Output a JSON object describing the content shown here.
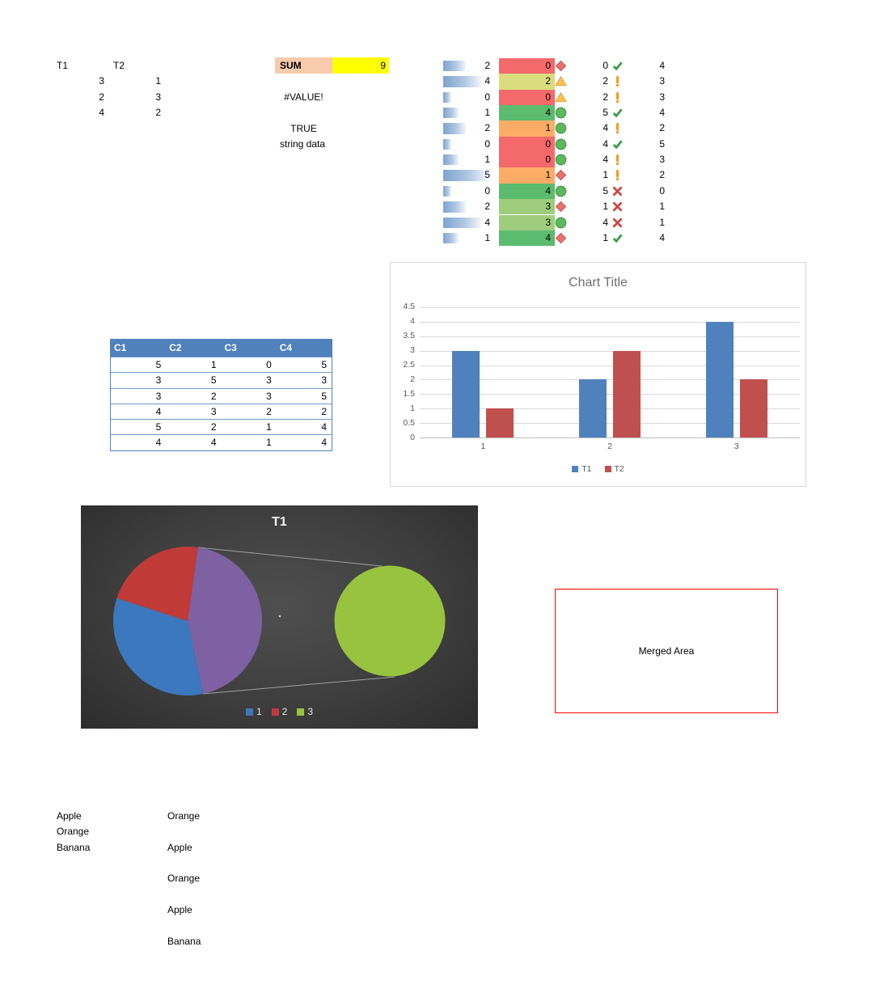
{
  "top_left_table": {
    "col_headers": [
      "T1",
      "T2"
    ],
    "rows": [
      [
        "3",
        "1"
      ],
      [
        "2",
        "3"
      ],
      [
        "4",
        "2"
      ]
    ]
  },
  "sum_panel": {
    "label": "SUM",
    "value": "9",
    "error_value": "#VALUE!",
    "bool_value": "TRUE",
    "string_value": "string data",
    "label_bg": "#F8CBAD",
    "value_bg": "#FFFF00"
  },
  "cond_format": {
    "scale_colors": {
      "red": "#F3696C",
      "khaki": "#D9DD7E",
      "orange": "#FBAD68",
      "lightgreen": "#9ECD7E",
      "green": "#5BBB6E"
    },
    "icon_colors": {
      "diamond_fill": "#E8716E",
      "diamond_stroke": "#C05450",
      "triangle_fill": "#FDC24E",
      "triangle_stroke": "#E09A3E",
      "circle_fill": "#5CB85C",
      "circle_stroke": "#3E8E41",
      "check": "#3C9E49",
      "excl": "#F09C1B",
      "x": "#CE4844"
    },
    "bar_max": 5,
    "rows": [
      {
        "bar": 2,
        "scale": 0,
        "scale_bg": "red",
        "shape": "diamond",
        "icon_value": 0,
        "icon": "check",
        "plain": 4
      },
      {
        "bar": 4,
        "scale": 2,
        "scale_bg": "khaki",
        "shape": "triangle",
        "icon_value": 2,
        "icon": "excl",
        "plain": 3
      },
      {
        "bar": 0,
        "scale": 0,
        "scale_bg": "red",
        "shape": "triangle",
        "icon_value": 2,
        "icon": "excl",
        "plain": 3
      },
      {
        "bar": 1,
        "scale": 4,
        "scale_bg": "green",
        "shape": "circle",
        "icon_value": 5,
        "icon": "check",
        "plain": 4
      },
      {
        "bar": 2,
        "scale": 1,
        "scale_bg": "orange",
        "shape": "circle",
        "icon_value": 4,
        "icon": "excl",
        "plain": 2
      },
      {
        "bar": 0,
        "scale": 0,
        "scale_bg": "red",
        "shape": "circle",
        "icon_value": 4,
        "icon": "check",
        "plain": 5
      },
      {
        "bar": 1,
        "scale": 0,
        "scale_bg": "red",
        "shape": "circle",
        "icon_value": 4,
        "icon": "excl",
        "plain": 3
      },
      {
        "bar": 5,
        "scale": 1,
        "scale_bg": "orange",
        "shape": "diamond",
        "icon_value": 1,
        "icon": "excl",
        "plain": 2
      },
      {
        "bar": 0,
        "scale": 4,
        "scale_bg": "green",
        "shape": "circle",
        "icon_value": 5,
        "icon": "x",
        "plain": 0
      },
      {
        "bar": 2,
        "scale": 3,
        "scale_bg": "lightgreen",
        "shape": "diamond",
        "icon_value": 1,
        "icon": "x",
        "plain": 1
      },
      {
        "bar": 4,
        "scale": 3,
        "scale_bg": "lightgreen",
        "shape": "circle",
        "icon_value": 4,
        "icon": "x",
        "plain": 1
      },
      {
        "bar": 1,
        "scale": 4,
        "scale_bg": "green",
        "shape": "diamond",
        "icon_value": 1,
        "icon": "check",
        "plain": 4
      }
    ]
  },
  "c_table": {
    "header_bg": "#4F81BD",
    "headers": [
      "C1",
      "C2",
      "C3",
      "C4"
    ],
    "rows": [
      [
        5,
        1,
        0,
        5
      ],
      [
        3,
        5,
        3,
        3
      ],
      [
        3,
        2,
        3,
        5
      ],
      [
        4,
        3,
        2,
        2
      ],
      [
        5,
        2,
        1,
        4
      ],
      [
        4,
        4,
        1,
        4
      ]
    ]
  },
  "chart_data": [
    {
      "type": "bar",
      "title": "Chart Title",
      "categories": [
        "1",
        "2",
        "3"
      ],
      "series": [
        {
          "name": "T1",
          "color": "#4F81BD",
          "values": [
            3,
            2,
            4
          ]
        },
        {
          "name": "T2",
          "color": "#C0504D",
          "values": [
            1,
            3,
            2
          ]
        }
      ],
      "ylim": [
        0,
        4.5
      ],
      "ytick_step": 0.5,
      "grid": true,
      "legend_position": "bottom"
    },
    {
      "type": "pie-of-pie",
      "title": "T1",
      "categories": [
        "1",
        "2",
        "3"
      ],
      "values": [
        3,
        2,
        4
      ],
      "start_angle_deg": 8,
      "main_pie": {
        "slices": [
          {
            "label": "Other",
            "value": 4,
            "color": "#7D61A3"
          },
          {
            "label": "1",
            "value": 3,
            "color": "#3B78BE"
          },
          {
            "label": "2",
            "value": 2,
            "color": "#C03B38"
          }
        ]
      },
      "secondary_pie": {
        "slices": [
          {
            "label": "3",
            "value": 4,
            "color": "#98C33F"
          }
        ]
      },
      "legend": [
        {
          "label": "1",
          "color": "#3B78BE"
        },
        {
          "label": "2",
          "color": "#C03B38"
        },
        {
          "label": "3",
          "color": "#98C33F"
        }
      ],
      "legend_position": "bottom"
    }
  ],
  "merged_area": {
    "label": "Merged Area",
    "border_color": "#FF0000"
  },
  "fruit_lists": {
    "left": [
      "Apple",
      "Orange",
      "Banana"
    ],
    "right": [
      "Orange",
      "Apple",
      "Orange",
      "Apple",
      "Banana"
    ]
  }
}
